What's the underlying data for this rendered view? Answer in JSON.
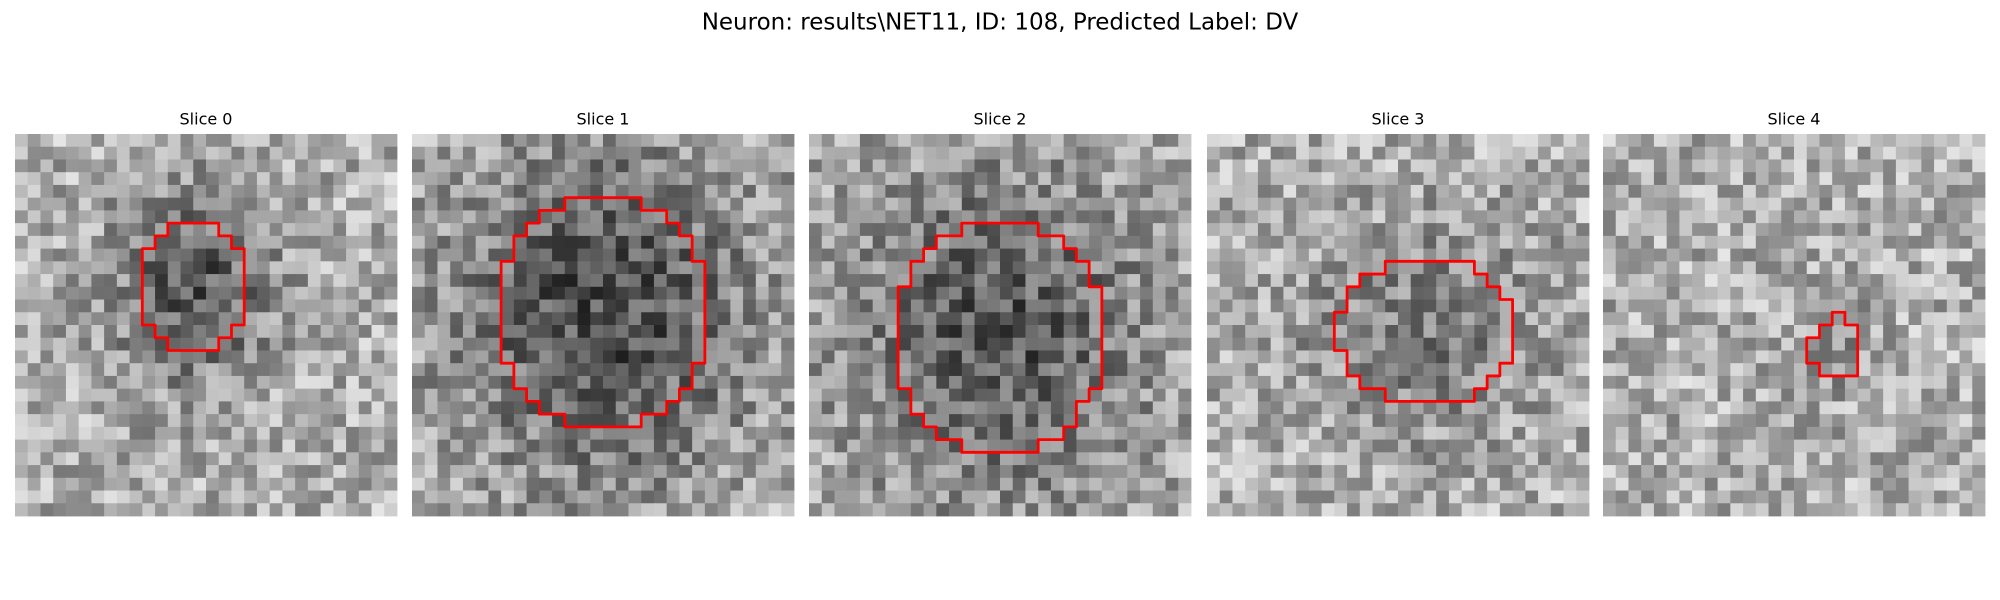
{
  "title": "Neuron: results\\NET11, ID: 108, Predicted Label: DV",
  "panels": [
    {
      "title": "Slice 0"
    },
    {
      "title": "Slice 1"
    },
    {
      "title": "Slice 2"
    },
    {
      "title": "Slice 3"
    },
    {
      "title": "Slice 4"
    }
  ]
}
